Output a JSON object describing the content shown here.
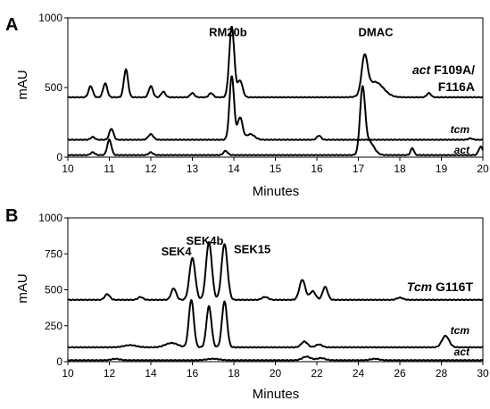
{
  "chart_data": [
    {
      "type": "line",
      "panel_label": "A",
      "xlabel": "Minutes",
      "ylabel": "mAU",
      "xlim": [
        10,
        20
      ],
      "ylim": [
        0,
        1000
      ],
      "xticks": [
        "10",
        "11",
        "12",
        "13",
        "14",
        "15",
        "16",
        "17",
        "18",
        "19",
        "20"
      ],
      "yticks": [
        "0",
        "500",
        "1000"
      ],
      "annotations": [
        {
          "text": "RM20b",
          "x": 13.4,
          "y": 870
        },
        {
          "text": "DMAC",
          "x": 17.0,
          "y": 870
        }
      ],
      "series": [
        {
          "name": "act F109A/ F116A",
          "name_parts": [
            "act",
            " F109A/",
            "F116A"
          ],
          "baseline": 430,
          "peaks": [
            [
              10.55,
              80,
              0.05
            ],
            [
              10.9,
              100,
              0.05
            ],
            [
              11.4,
              200,
              0.05
            ],
            [
              12.0,
              80,
              0.05
            ],
            [
              12.3,
              40,
              0.05
            ],
            [
              13.0,
              30,
              0.05
            ],
            [
              13.45,
              30,
              0.05
            ],
            [
              13.95,
              510,
              0.06
            ],
            [
              14.15,
              120,
              0.06
            ],
            [
              17.15,
              260,
              0.07
            ],
            [
              17.4,
              110,
              0.2
            ],
            [
              18.7,
              30,
              0.05
            ]
          ]
        },
        {
          "name": "tcm",
          "baseline": 125,
          "peaks": [
            [
              10.6,
              20,
              0.05
            ],
            [
              11.05,
              80,
              0.05
            ],
            [
              12.0,
              40,
              0.06
            ],
            [
              13.95,
              460,
              0.055
            ],
            [
              14.15,
              160,
              0.06
            ],
            [
              14.4,
              40,
              0.1
            ],
            [
              16.05,
              30,
              0.05
            ],
            [
              19.7,
              10,
              0.05
            ]
          ]
        },
        {
          "name": "act",
          "baseline": 15,
          "peaks": [
            [
              10.6,
              20,
              0.05
            ],
            [
              11.0,
              110,
              0.05
            ],
            [
              12.0,
              20,
              0.05
            ],
            [
              13.8,
              30,
              0.05
            ],
            [
              17.1,
              450,
              0.06
            ],
            [
              17.25,
              100,
              0.12
            ],
            [
              18.3,
              50,
              0.04
            ],
            [
              19.95,
              60,
              0.05
            ]
          ]
        }
      ]
    },
    {
      "type": "line",
      "panel_label": "B",
      "xlabel": "Minutes",
      "ylabel": "mAU",
      "xlim": [
        10,
        30
      ],
      "ylim": [
        0,
        1000
      ],
      "xticks": [
        "10",
        "12",
        "14",
        "16",
        "18",
        "20",
        "22",
        "24",
        "26",
        "28",
        "30"
      ],
      "yticks": [
        "0",
        "250",
        "500",
        "750",
        "1000"
      ],
      "annotations": [
        {
          "text": "SEK4",
          "x": 14.5,
          "y": 740
        },
        {
          "text": "SEK4b",
          "x": 15.7,
          "y": 815
        },
        {
          "text": "SEK15",
          "x": 18.0,
          "y": 755
        }
      ],
      "series": [
        {
          "name": "Tcm G116T",
          "name_parts": [
            "Tcm",
            " G116T"
          ],
          "baseline": 430,
          "peaks": [
            [
              11.9,
              40,
              0.12
            ],
            [
              13.5,
              20,
              0.12
            ],
            [
              15.1,
              80,
              0.12
            ],
            [
              16.0,
              290,
              0.14
            ],
            [
              16.8,
              400,
              0.14
            ],
            [
              17.55,
              390,
              0.14
            ],
            [
              19.5,
              20,
              0.15
            ],
            [
              21.3,
              140,
              0.14
            ],
            [
              21.8,
              60,
              0.14
            ],
            [
              22.4,
              90,
              0.12
            ],
            [
              26.0,
              15,
              0.15
            ]
          ]
        },
        {
          "name": "tcm",
          "baseline": 100,
          "peaks": [
            [
              13.0,
              15,
              0.3
            ],
            [
              15.0,
              30,
              0.3
            ],
            [
              15.95,
              330,
              0.12
            ],
            [
              16.8,
              285,
              0.12
            ],
            [
              17.55,
              320,
              0.12
            ],
            [
              21.4,
              40,
              0.15
            ],
            [
              22.1,
              20,
              0.15
            ],
            [
              28.2,
              80,
              0.17
            ]
          ]
        },
        {
          "name": "act",
          "baseline": 10,
          "peaks": [
            [
              12.3,
              10,
              0.2
            ],
            [
              17.0,
              10,
              0.3
            ],
            [
              21.5,
              25,
              0.2
            ],
            [
              22.2,
              15,
              0.2
            ],
            [
              24.8,
              10,
              0.2
            ]
          ]
        }
      ]
    }
  ]
}
